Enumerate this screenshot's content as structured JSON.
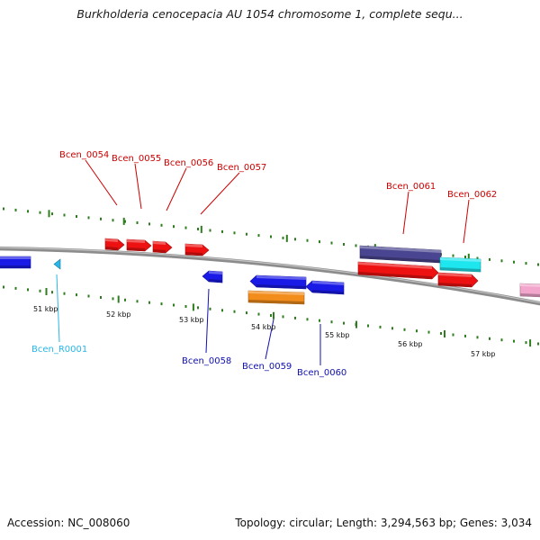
{
  "title": "Burkholderia cenocepacia AU 1054 chromosome 1, complete sequ...",
  "accession": "Accession: NC_008060",
  "summary": "Topology: circular; Length: 3,294,563 bp; Genes: 3,034",
  "colors": {
    "backbone": "#8c8c8c",
    "tick": "#2e7d1e",
    "forward_label": "#cc0000",
    "reverse_label": "#1010b0",
    "rna_label": "#29b6e8",
    "scale_label": "#111111"
  },
  "scale_labels": [
    "51 kbp",
    "52 kbp",
    "53 kbp",
    "54 kbp",
    "55 kbp",
    "56 kbp",
    "57 kbp"
  ],
  "gene_labels": [
    {
      "text": "Bcen_0054",
      "strand": "forward"
    },
    {
      "text": "Bcen_0055",
      "strand": "forward"
    },
    {
      "text": "Bcen_0056",
      "strand": "forward"
    },
    {
      "text": "Bcen_0057",
      "strand": "forward"
    },
    {
      "text": "Bcen_0061",
      "strand": "forward"
    },
    {
      "text": "Bcen_0062",
      "strand": "forward"
    },
    {
      "text": "Bcen_R0001",
      "strand": "rna"
    },
    {
      "text": "Bcen_0058",
      "strand": "reverse"
    },
    {
      "text": "Bcen_0059",
      "strand": "reverse"
    },
    {
      "text": "Bcen_0060",
      "strand": "reverse"
    }
  ],
  "features": [
    {
      "name": "feature-left-reverse",
      "color": "#1a1ae6"
    },
    {
      "name": "feature-rna-R0001",
      "color": "#29b6e8"
    },
    {
      "name": "feature-0054",
      "color": "#ee1111"
    },
    {
      "name": "feature-0055",
      "color": "#ee1111"
    },
    {
      "name": "feature-0056",
      "color": "#ee1111"
    },
    {
      "name": "feature-0057",
      "color": "#ee1111"
    },
    {
      "name": "feature-0058",
      "color": "#1a1ae6"
    },
    {
      "name": "feature-0059-blue",
      "color": "#1a1ae6"
    },
    {
      "name": "feature-0059-orange",
      "color": "#f28c1a"
    },
    {
      "name": "feature-0060",
      "color": "#1a1ae6"
    },
    {
      "name": "feature-0061-purple",
      "color": "#4a4590"
    },
    {
      "name": "feature-0062-cyan",
      "color": "#1ee6ee"
    },
    {
      "name": "feature-0061-red",
      "color": "#ee1111"
    },
    {
      "name": "feature-0062-red",
      "color": "#ee1111"
    },
    {
      "name": "feature-right-pink",
      "color": "#f2a6cc"
    }
  ]
}
